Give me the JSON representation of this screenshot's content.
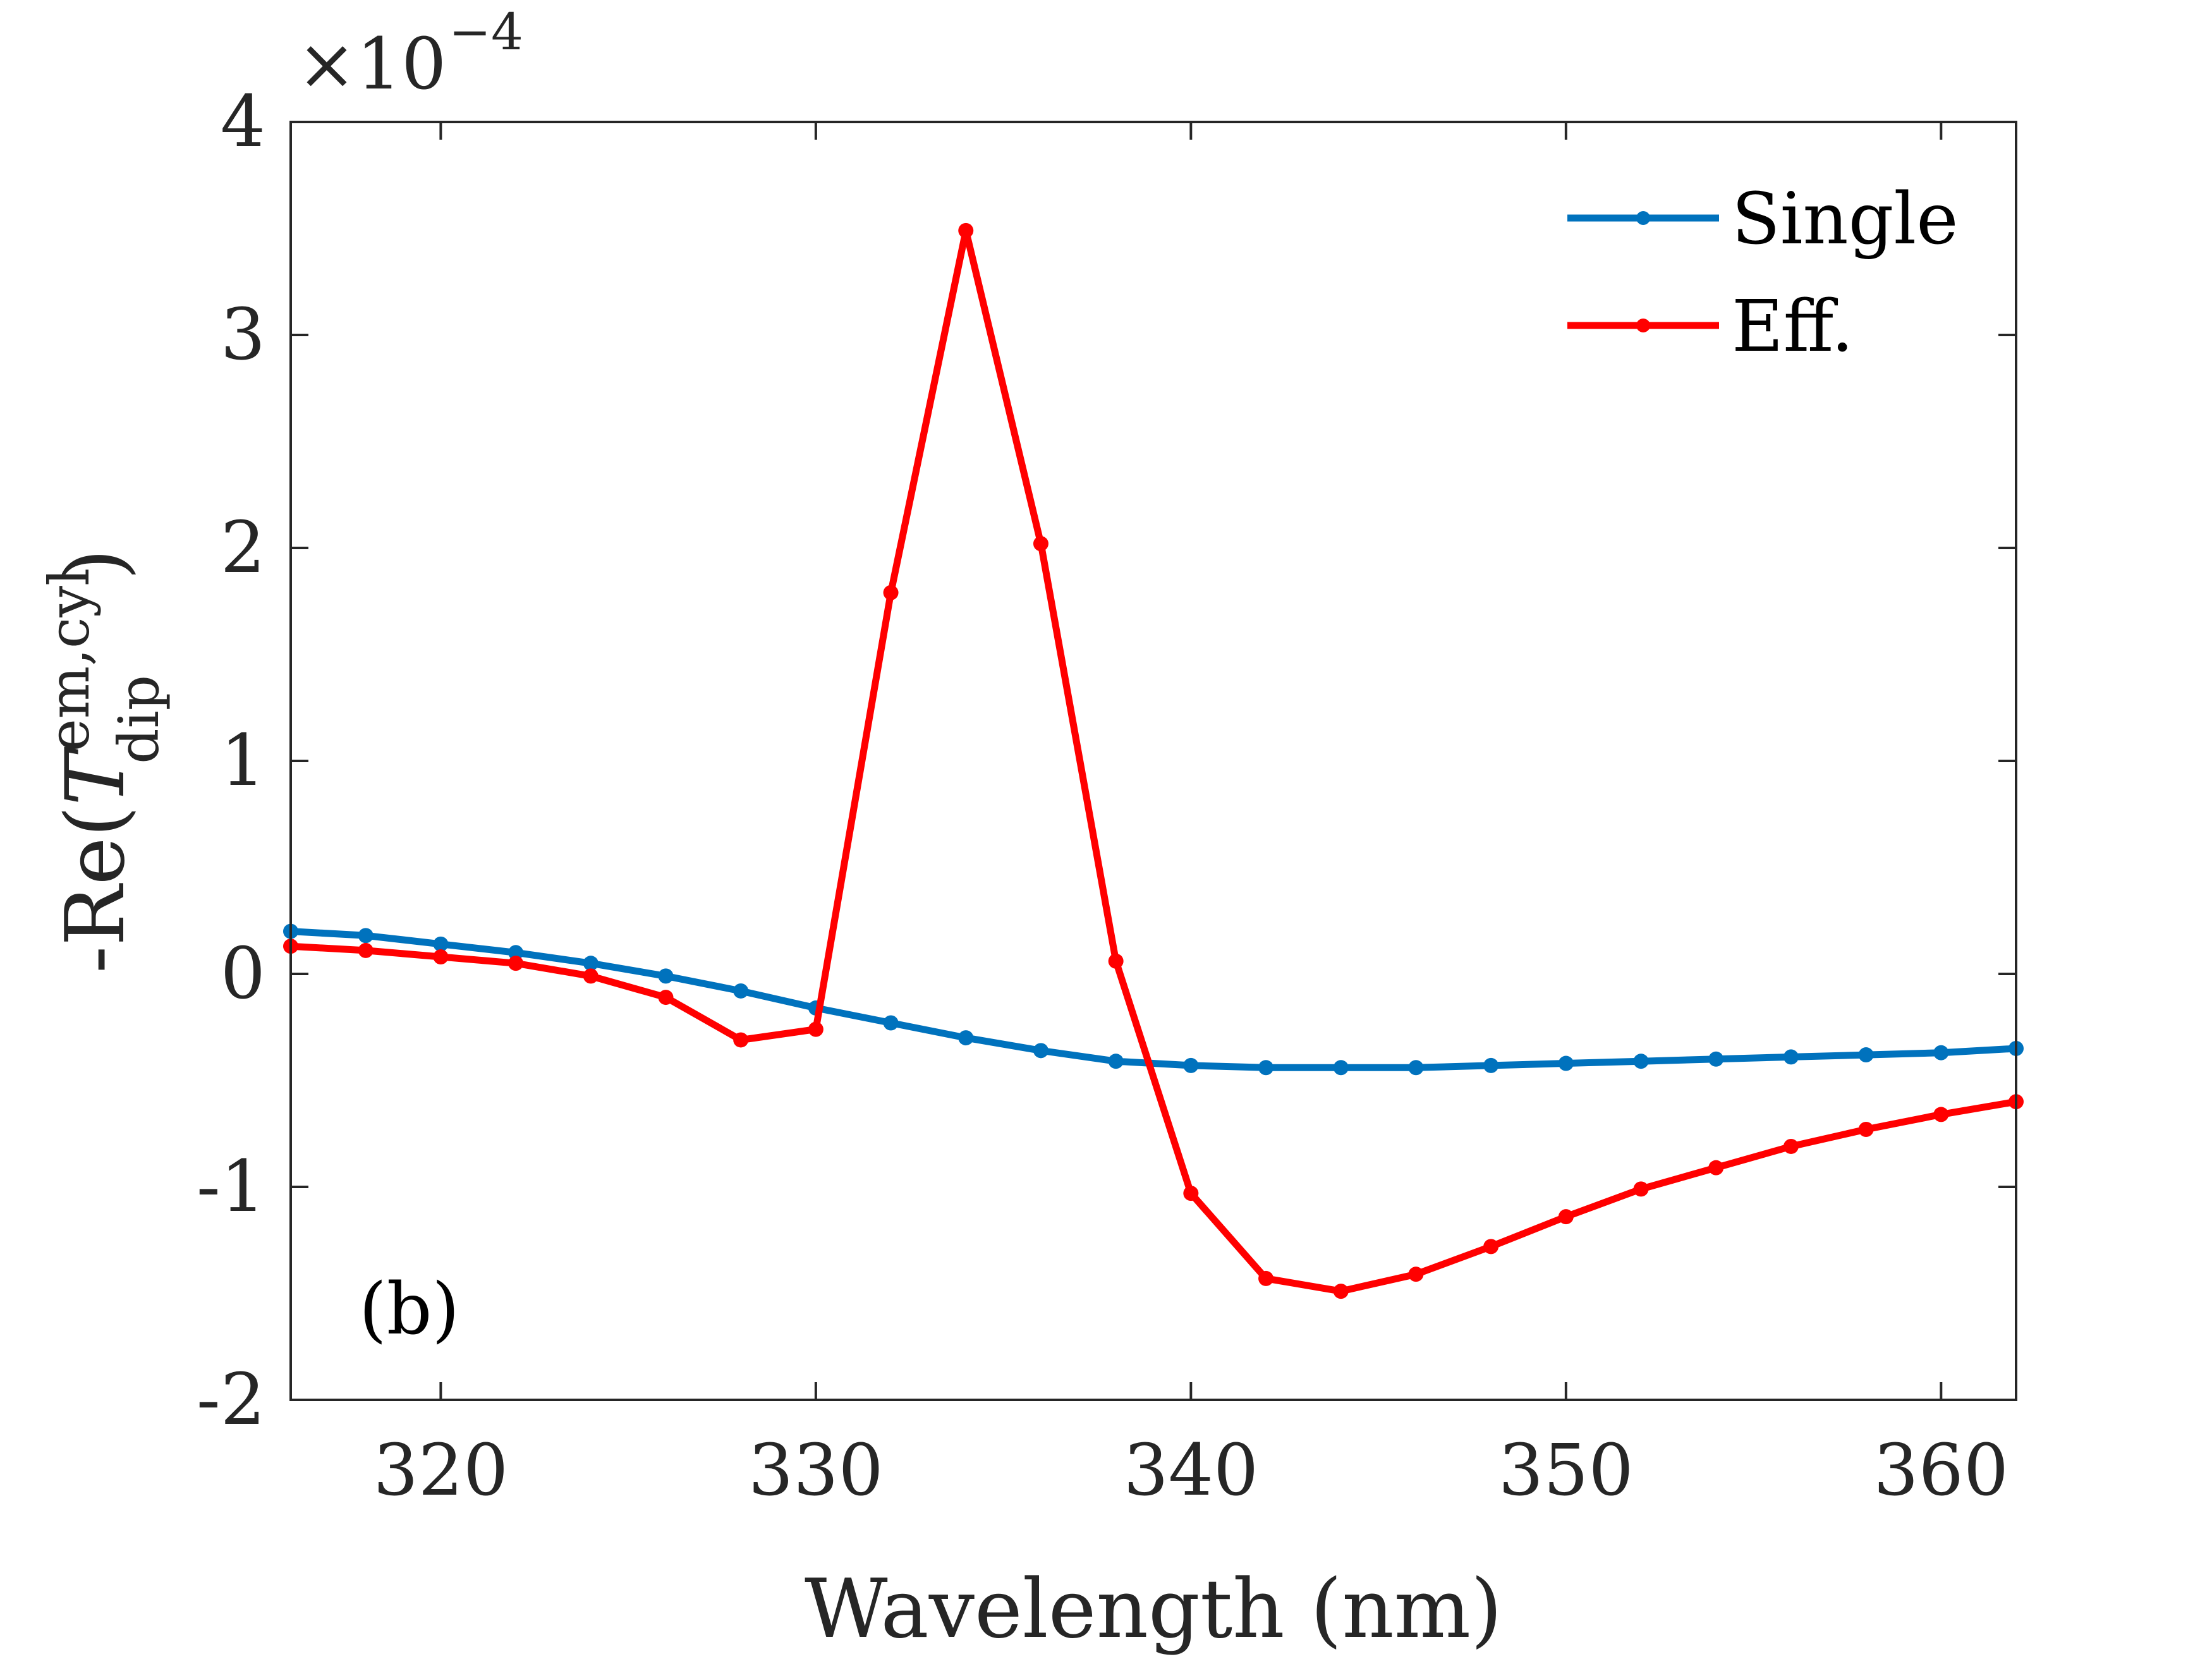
{
  "chart_data": {
    "type": "line",
    "title": "",
    "xlabel": "Wavelength (nm)",
    "ylabel": {
      "prefix": "-Re(",
      "symbol": "T",
      "subscript": "dip",
      "superscript": "em,cyl",
      "suffix": ")"
    },
    "y_exponent": {
      "base": "×10",
      "power": "−4"
    },
    "xlim": [
      316,
      362
    ],
    "ylim": [
      -2,
      4
    ],
    "xticks": [
      320,
      330,
      340,
      350,
      360
    ],
    "xtick_labels": [
      "320",
      "330",
      "340",
      "350",
      "360"
    ],
    "yticks": [
      -2,
      -1,
      0,
      1,
      2,
      3,
      4
    ],
    "ytick_labels": [
      "-2",
      "-1",
      "0",
      "1",
      "2",
      "3",
      "4"
    ],
    "grid": false,
    "legend_position": "top-right",
    "panel_label": "(b)",
    "x": [
      316,
      318,
      320,
      322,
      324,
      326,
      328,
      330,
      332,
      334,
      336,
      338,
      340,
      342,
      344,
      346,
      348,
      350,
      352,
      354,
      356,
      358,
      360,
      362
    ],
    "series": [
      {
        "name": "Single",
        "color": "#0072BD",
        "values": [
          0.2,
          0.18,
          0.14,
          0.1,
          0.05,
          -0.01,
          -0.08,
          -0.16,
          -0.23,
          -0.3,
          -0.36,
          -0.41,
          -0.43,
          -0.44,
          -0.44,
          -0.44,
          -0.43,
          -0.42,
          -0.41,
          -0.4,
          -0.39,
          -0.38,
          -0.37,
          -0.35
        ]
      },
      {
        "name": "Eff.",
        "color": "#FF0000",
        "values": [
          0.13,
          0.11,
          0.08,
          0.05,
          -0.01,
          -0.11,
          -0.31,
          -0.26,
          1.79,
          3.49,
          2.02,
          0.06,
          -1.03,
          -1.43,
          -1.49,
          -1.41,
          -1.28,
          -1.14,
          -1.01,
          -0.91,
          -0.81,
          -0.73,
          -0.66,
          -0.6
        ]
      }
    ]
  }
}
